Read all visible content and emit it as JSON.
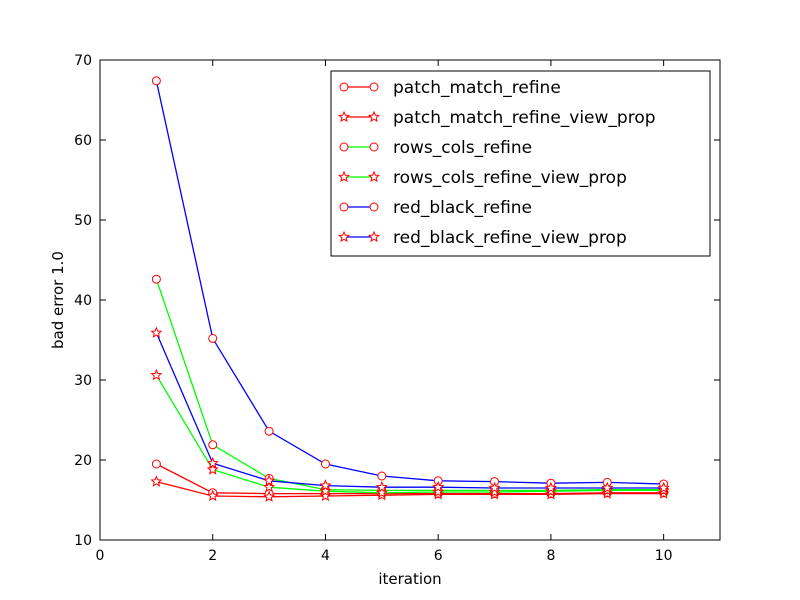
{
  "chart_data": {
    "type": "line",
    "xlabel": "iteration",
    "ylabel": "bad error 1.0",
    "xlim": [
      0,
      11
    ],
    "ylim": [
      10,
      70
    ],
    "xticks": [
      0,
      2,
      4,
      6,
      8,
      10
    ],
    "yticks": [
      10,
      20,
      30,
      40,
      50,
      60,
      70
    ],
    "grid": false,
    "legend_position": "top-right",
    "x": [
      1,
      2,
      3,
      4,
      5,
      6,
      7,
      8,
      9,
      10
    ],
    "series": [
      {
        "name": "patch_match_refine",
        "color": "#ff0000",
        "marker": "circle",
        "values": [
          19.5,
          15.9,
          15.8,
          15.8,
          15.8,
          15.8,
          15.8,
          15.8,
          15.9,
          15.9
        ]
      },
      {
        "name": "patch_match_refine_view_prop",
        "color": "#ff0000",
        "marker": "star",
        "values": [
          17.3,
          15.5,
          15.4,
          15.5,
          15.6,
          15.7,
          15.7,
          15.7,
          15.8,
          15.8
        ]
      },
      {
        "name": "rows_cols_refine",
        "color": "#00ff00",
        "marker": "circle",
        "values": [
          42.6,
          21.9,
          17.7,
          16.3,
          16.2,
          16.2,
          16.2,
          16.2,
          16.3,
          16.3
        ]
      },
      {
        "name": "rows_cols_refine_view_prop",
        "color": "#00ff00",
        "marker": "star",
        "values": [
          30.6,
          18.8,
          16.6,
          16.1,
          15.9,
          16.0,
          16.0,
          16.1,
          16.2,
          16.2
        ]
      },
      {
        "name": "red_black_refine",
        "color": "#0000ff",
        "marker": "circle",
        "values": [
          67.4,
          35.2,
          23.6,
          19.5,
          18.0,
          17.4,
          17.3,
          17.1,
          17.2,
          17.0
        ]
      },
      {
        "name": "red_black_refine_view_prop",
        "color": "#0000ff",
        "marker": "star",
        "values": [
          35.9,
          19.6,
          17.4,
          16.8,
          16.6,
          16.6,
          16.5,
          16.5,
          16.5,
          16.5
        ]
      }
    ]
  }
}
